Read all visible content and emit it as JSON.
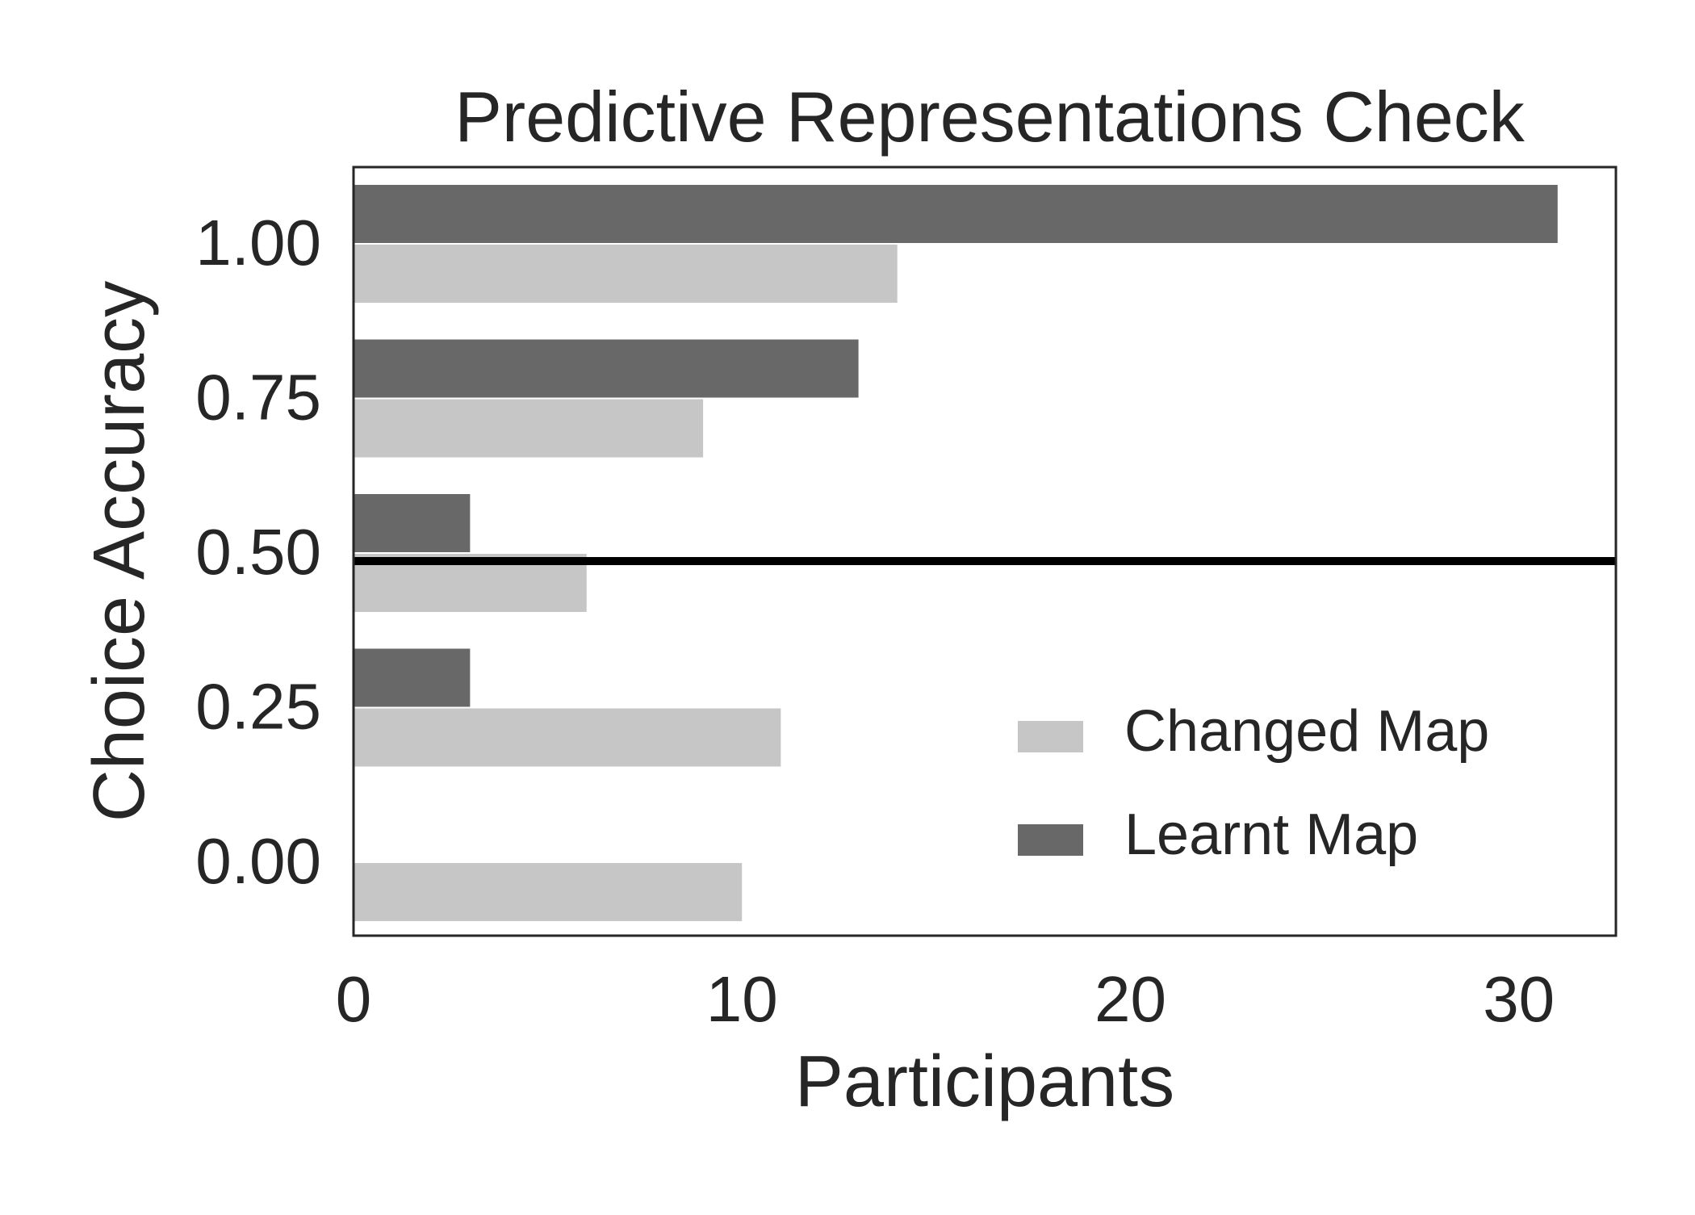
{
  "chart_data": {
    "type": "bar",
    "orientation": "horizontal",
    "title": "Predictive Representations Check",
    "xlabel": "Participants",
    "ylabel": "Choice Accuracy",
    "categories": [
      "1.00",
      "0.75",
      "0.50",
      "0.25",
      "0.00"
    ],
    "x_ticks": [
      "0",
      "10",
      "20",
      "30"
    ],
    "xlim": [
      0,
      32.5
    ],
    "series": [
      {
        "name": "Learnt Map",
        "color": "#686868",
        "values": [
          31,
          13,
          3,
          3,
          0
        ]
      },
      {
        "name": "Changed Map",
        "color": "#c6c6c6",
        "values": [
          14,
          9,
          6,
          11,
          10
        ]
      }
    ],
    "reference_line": {
      "category": "0.50",
      "color": "#000000"
    },
    "legend": {
      "placement": "lower-right",
      "items": [
        {
          "label": "Changed Map",
          "color": "#c6c6c6"
        },
        {
          "label": "Learnt Map",
          "color": "#686868"
        }
      ]
    },
    "grid": false
  }
}
